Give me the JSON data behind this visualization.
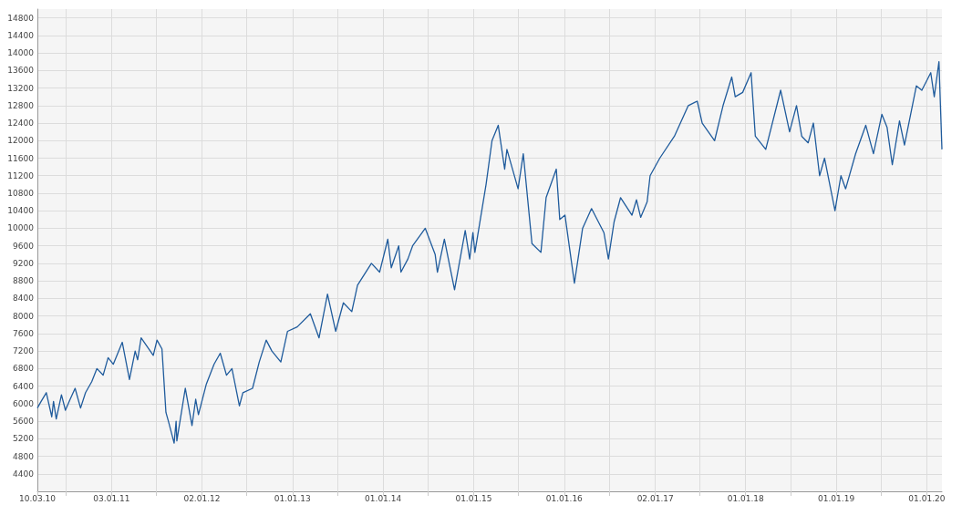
{
  "chart_data": {
    "type": "line",
    "color": "#1f5b9c",
    "grid": true,
    "marker": "none",
    "line_style": "solid",
    "xlim": [
      "2010-03-10",
      "2020-03-02"
    ],
    "xticks": [
      {
        "value": "2010-03-10",
        "label": "10.03.10"
      },
      {
        "value": "2010-07-01",
        "label": null
      },
      {
        "value": "2011-01-03",
        "label": "03.01.11"
      },
      {
        "value": "2011-07-01",
        "label": null
      },
      {
        "value": "2012-01-02",
        "label": "02.01.12"
      },
      {
        "value": "2012-07-01",
        "label": null
      },
      {
        "value": "2013-01-01",
        "label": "01.01.13"
      },
      {
        "value": "2013-07-01",
        "label": null
      },
      {
        "value": "2014-01-01",
        "label": "01.01.14"
      },
      {
        "value": "2014-07-01",
        "label": null
      },
      {
        "value": "2015-01-01",
        "label": "01.01.15"
      },
      {
        "value": "2015-07-01",
        "label": null
      },
      {
        "value": "2016-01-01",
        "label": "01.01.16"
      },
      {
        "value": "2016-07-01",
        "label": null
      },
      {
        "value": "2017-01-02",
        "label": "02.01.17"
      },
      {
        "value": "2017-07-01",
        "label": null
      },
      {
        "value": "2018-01-01",
        "label": "01.01.18"
      },
      {
        "value": "2018-07-01",
        "label": null
      },
      {
        "value": "2019-01-01",
        "label": "01.01.19"
      },
      {
        "value": "2019-07-01",
        "label": null
      },
      {
        "value": "2020-01-01",
        "label": "01.01.20"
      }
    ],
    "ylim": [
      4000,
      15000
    ],
    "yticks": [
      4400,
      4800,
      5200,
      5600,
      6000,
      6400,
      6800,
      7200,
      7600,
      8000,
      8400,
      8800,
      9200,
      9600,
      10000,
      10400,
      10800,
      11200,
      11600,
      12000,
      12400,
      12800,
      13200,
      13600,
      14000,
      14400,
      14800
    ],
    "x": [
      "2010-03-10",
      "2010-03-25",
      "2010-04-15",
      "2010-05-07",
      "2010-05-14",
      "2010-05-25",
      "2010-06-15",
      "2010-07-01",
      "2010-07-20",
      "2010-08-09",
      "2010-08-31",
      "2010-09-20",
      "2010-10-15",
      "2010-11-05",
      "2010-11-30",
      "2010-12-20",
      "2011-01-10",
      "2011-02-15",
      "2011-03-16",
      "2011-04-08",
      "2011-04-18",
      "2011-05-02",
      "2011-06-20",
      "2011-07-05",
      "2011-07-25",
      "2011-08-10",
      "2011-08-20",
      "2011-09-12",
      "2011-09-20",
      "2011-09-23",
      "2011-10-27",
      "2011-11-23",
      "2011-12-08",
      "2011-12-19",
      "2012-01-20",
      "2012-02-20",
      "2012-03-16",
      "2012-04-10",
      "2012-05-02",
      "2012-06-01",
      "2012-06-15",
      "2012-07-24",
      "2012-08-20",
      "2012-09-17",
      "2012-10-10",
      "2012-11-15",
      "2012-12-12",
      "2013-01-20",
      "2013-03-14",
      "2013-04-18",
      "2013-05-22",
      "2013-06-24",
      "2013-07-25",
      "2013-08-28",
      "2013-09-20",
      "2013-11-15",
      "2013-12-18",
      "2014-01-20",
      "2014-02-03",
      "2014-03-05",
      "2014-03-14",
      "2014-04-11",
      "2014-04-30",
      "2014-06-20",
      "2014-07-30",
      "2014-08-08",
      "2014-09-05",
      "2014-10-16",
      "2014-11-28",
      "2014-12-16",
      "2014-12-29",
      "2015-01-06",
      "2015-02-20",
      "2015-03-16",
      "2015-04-10",
      "2015-05-06",
      "2015-05-15",
      "2015-06-29",
      "2015-07-20",
      "2015-08-24",
      "2015-09-29",
      "2015-10-20",
      "2015-11-30",
      "2015-12-14",
      "2016-01-04",
      "2016-02-11",
      "2016-03-15",
      "2016-04-20",
      "2016-06-09",
      "2016-06-27",
      "2016-07-20",
      "2016-08-15",
      "2016-09-30",
      "2016-10-18",
      "2016-11-04",
      "2016-11-30",
      "2016-12-12",
      "2017-01-20",
      "2017-03-20",
      "2017-05-15",
      "2017-06-20",
      "2017-07-10",
      "2017-08-29",
      "2017-10-02",
      "2017-11-06",
      "2017-11-20",
      "2017-12-20",
      "2018-01-23",
      "2018-02-09",
      "2018-03-23",
      "2018-05-22",
      "2018-06-27",
      "2018-07-25",
      "2018-08-15",
      "2018-09-10",
      "2018-10-01",
      "2018-10-26",
      "2018-11-15",
      "2018-12-27",
      "2019-01-20",
      "2019-02-08",
      "2019-03-20",
      "2019-04-30",
      "2019-05-31",
      "2019-07-04",
      "2019-07-25",
      "2019-08-15",
      "2019-09-13",
      "2019-10-03",
      "2019-11-20",
      "2019-12-12",
      "2020-01-17",
      "2020-01-31",
      "2020-02-19",
      "2020-02-25",
      "2020-03-02"
    ],
    "values": [
      5900,
      6050,
      6250,
      5700,
      6050,
      5650,
      6200,
      5850,
      6100,
      6350,
      5900,
      6250,
      6500,
      6800,
      6650,
      7050,
      6900,
      7400,
      6550,
      7200,
      7000,
      7500,
      7100,
      7450,
      7250,
      5800,
      5600,
      5100,
      5600,
      5150,
      6350,
      5500,
      6100,
      5750,
      6450,
      6900,
      7150,
      6650,
      6800,
      5950,
      6250,
      6350,
      6950,
      7450,
      7200,
      6950,
      7650,
      7750,
      8050,
      7500,
      8500,
      7650,
      8300,
      8100,
      8700,
      9200,
      9000,
      9750,
      9100,
      9600,
      9000,
      9300,
      9600,
      10000,
      9400,
      9000,
      9750,
      8600,
      9950,
      9300,
      9900,
      9450,
      11000,
      12000,
      12350,
      11350,
      11800,
      10900,
      11700,
      9650,
      9450,
      10700,
      11350,
      10200,
      10300,
      8750,
      10000,
      10450,
      9900,
      9300,
      10150,
      10700,
      10300,
      10650,
      10250,
      10600,
      11200,
      11600,
      12100,
      12800,
      12900,
      12400,
      12000,
      12800,
      13450,
      13000,
      13100,
      13550,
      12100,
      11800,
      13150,
      12200,
      12800,
      12100,
      11950,
      12400,
      11200,
      11600,
      10400,
      11200,
      10900,
      11700,
      12350,
      11700,
      12600,
      12300,
      11450,
      12450,
      11900,
      13250,
      13150,
      13550,
      13000,
      13800,
      12800,
      11800
    ]
  }
}
